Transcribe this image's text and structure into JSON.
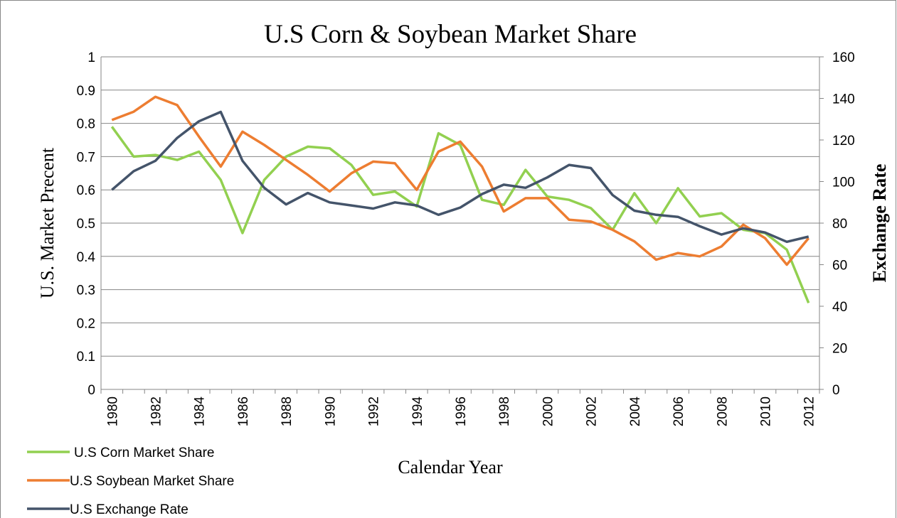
{
  "chart_data": {
    "type": "line",
    "title": "U.S Corn & Soybean Market Share",
    "x_label": "Calendar Year",
    "y_label": "U.S. Market Precent",
    "y2_label": "Exchange Rate",
    "categories": [
      "1980",
      null,
      "1982",
      null,
      "1984",
      null,
      "1986",
      null,
      "1988",
      null,
      "1990",
      null,
      "1992",
      null,
      "1994",
      null,
      "1996",
      null,
      "1998",
      null,
      "2000",
      null,
      "2002",
      null,
      "2004",
      null,
      "2006",
      null,
      "2008",
      null,
      "2010",
      null,
      "2012"
    ],
    "ylim": [
      0,
      1
    ],
    "yticks": [
      0,
      0.1,
      0.2,
      0.3,
      0.4,
      0.5,
      0.6,
      0.7,
      0.8,
      0.9,
      1
    ],
    "y2lim": [
      0,
      160
    ],
    "y2ticks": [
      0,
      20,
      40,
      60,
      80,
      100,
      120,
      140,
      160
    ],
    "grid": true,
    "legend": "bottom-left",
    "series": [
      {
        "name": "U.S Corn Market Share",
        "color": "#92d050",
        "values": [
          0.79,
          0.7,
          0.705,
          0.69,
          0.715,
          0.63,
          0.47,
          0.63,
          0.7,
          0.73,
          0.725,
          0.675,
          0.585,
          0.595,
          0.55,
          0.77,
          0.735,
          0.57,
          0.555,
          0.66,
          0.58,
          0.57,
          0.545,
          0.48,
          0.59,
          0.5,
          0.605,
          0.52,
          0.53,
          0.48,
          0.47,
          0.42,
          0.26
        ]
      },
      {
        "name": "U.S Soybean Market Share",
        "color": "#ed7d31",
        "values": [
          0.81,
          0.835,
          0.88,
          0.855,
          0.76,
          0.67,
          0.775,
          0.735,
          0.69,
          0.645,
          0.595,
          0.65,
          0.685,
          0.68,
          0.6,
          0.715,
          0.745,
          0.67,
          0.535,
          0.575,
          0.575,
          0.51,
          0.505,
          0.48,
          0.445,
          0.39,
          0.41,
          0.4,
          0.43,
          0.495,
          0.455,
          0.375,
          0.455
        ]
      },
      {
        "name": "U.S Exchange Rate",
        "color": "#44546a",
        "axis": "y2",
        "values": [
          96,
          105,
          110,
          121,
          129,
          133.5,
          110,
          97,
          89,
          94.5,
          90,
          88.5,
          87,
          90,
          88.5,
          84,
          87.5,
          94,
          98.5,
          97,
          102,
          108,
          106.5,
          93.5,
          86,
          84,
          83,
          78.5,
          74.5,
          77.5,
          75.5,
          71,
          73.5
        ]
      }
    ]
  }
}
